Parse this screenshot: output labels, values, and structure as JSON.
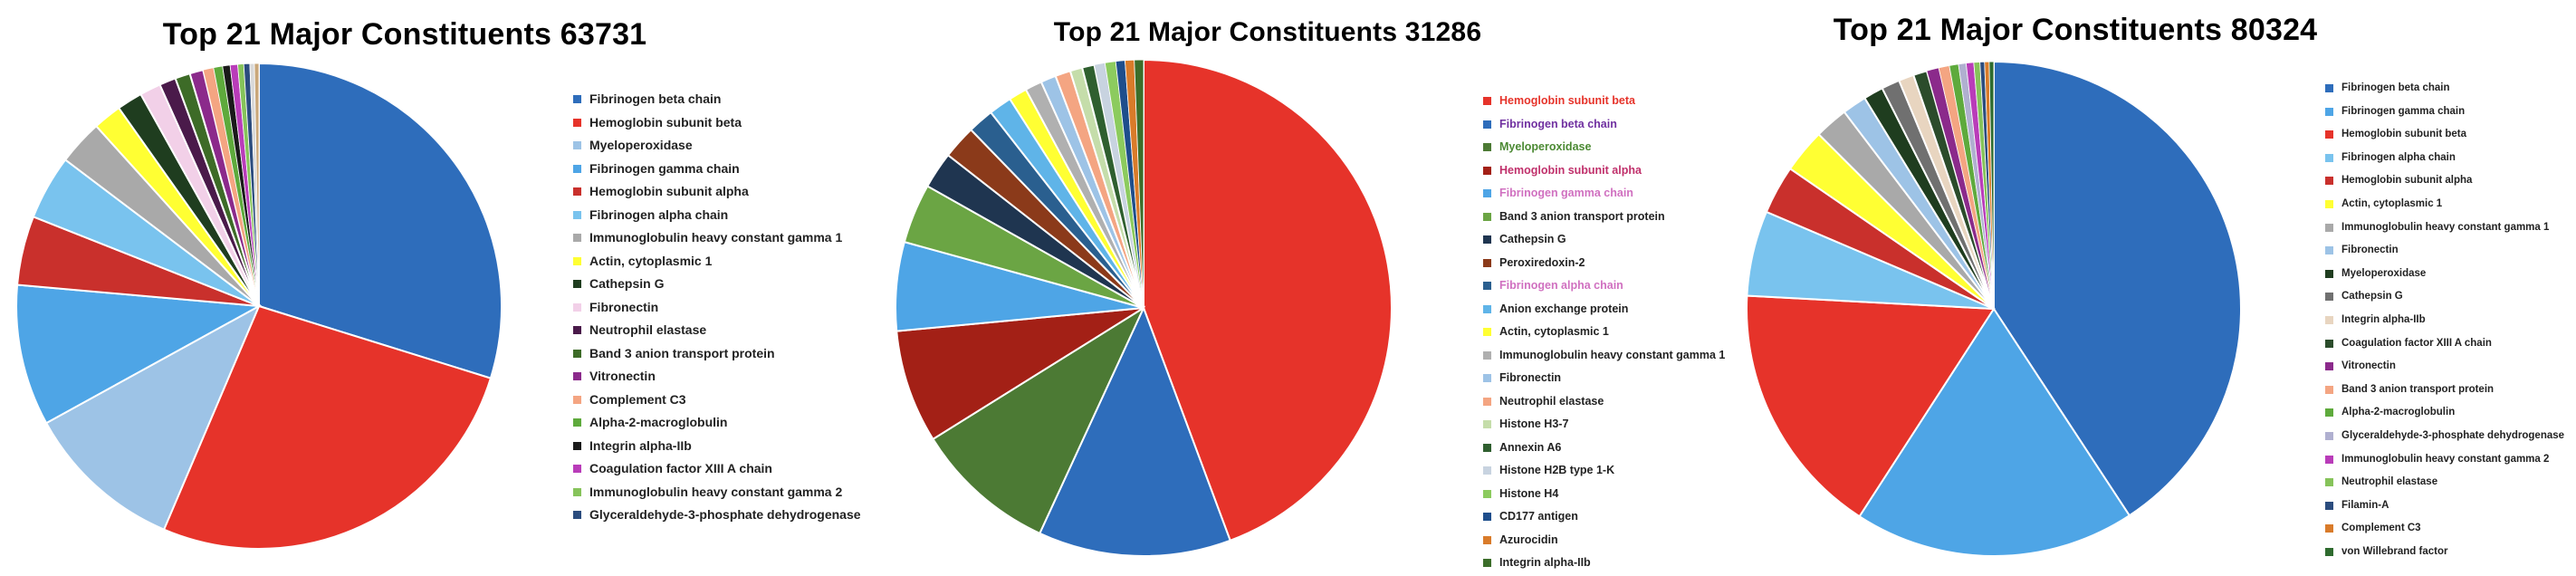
{
  "chart_data": [
    {
      "type": "pie",
      "title": "Top 21 Major Constituents 63731",
      "legend_position": "right",
      "legend_colored_text": false,
      "slices": [
        {
          "label": "Fibrinogen beta chain",
          "value": 29.8,
          "color": "#2E6DBB"
        },
        {
          "label": "Hemoglobin subunit beta",
          "value": 26.6,
          "color": "#E6332A"
        },
        {
          "label": "Myeloperoxidase",
          "value": 10.6,
          "color": "#9DC3E6"
        },
        {
          "label": "Fibrinogen gamma chain",
          "value": 9.4,
          "color": "#4EA5E6"
        },
        {
          "label": "Hemoglobin subunit alpha",
          "value": 4.6,
          "color": "#C9302C"
        },
        {
          "label": "Fibrinogen alpha chain",
          "value": 4.3,
          "color": "#79C3EE"
        },
        {
          "label": "Immunoglobulin heavy constant gamma 1",
          "value": 3.0,
          "color": "#A9A9A9"
        },
        {
          "label": "Actin, cytoplasmic 1",
          "value": 1.9,
          "color": "#FFFF33"
        },
        {
          "label": "Cathepsin G",
          "value": 1.7,
          "color": "#1F3D1F"
        },
        {
          "label": "Fibronectin",
          "value": 1.4,
          "color": "#F2D0E8"
        },
        {
          "label": "Neutrophil elastase",
          "value": 1.1,
          "color": "#4A1A4A"
        },
        {
          "label": "Band 3 anion transport protein",
          "value": 1.0,
          "color": "#3D6B27"
        },
        {
          "label": "Vitronectin",
          "value": 0.9,
          "color": "#8B2A8B"
        },
        {
          "label": "Complement C3",
          "value": 0.7,
          "color": "#F4A582"
        },
        {
          "label": "Alpha-2-macroglobulin",
          "value": 0.6,
          "color": "#5EAA3C"
        },
        {
          "label": "Integrin alpha-IIb",
          "value": 0.5,
          "color": "#1A1A1A"
        },
        {
          "label": "Coagulation factor XIII A chain",
          "value": 0.5,
          "color": "#B93CB9"
        },
        {
          "label": "Immunoglobulin heavy constant gamma 2",
          "value": 0.4,
          "color": "#86C35A"
        },
        {
          "label": "Glyceraldehyde-3-phosphate dehydrogenase",
          "value": 0.4,
          "color": "#2B4C7E"
        },
        {
          "label": "",
          "value": 0.3,
          "color": "#D9D9D9"
        },
        {
          "label": "",
          "value": 0.3,
          "color": "#C9A77A"
        }
      ]
    },
    {
      "type": "pie",
      "title": "Top 21 Major Constituents 31286",
      "legend_position": "right",
      "legend_colored_text": true,
      "slices": [
        {
          "label": "Hemoglobin subunit beta",
          "value": 44.5,
          "color": "#E6332A"
        },
        {
          "label": "Fibrinogen beta chain",
          "value": 12.6,
          "color": "#2E6DBB"
        },
        {
          "label": "Myeloperoxidase",
          "value": 9.3,
          "color": "#4C7A34"
        },
        {
          "label": "Hemoglobin subunit alpha",
          "value": 7.4,
          "color": "#A32016"
        },
        {
          "label": "Fibrinogen gamma chain",
          "value": 5.8,
          "color": "#4EA5E6"
        },
        {
          "label": "Band 3 anion transport protein",
          "value": 3.9,
          "color": "#6BA544"
        },
        {
          "label": "Cathepsin G",
          "value": 2.4,
          "color": "#1F3550"
        },
        {
          "label": "Peroxiredoxin-2",
          "value": 2.2,
          "color": "#8B3A1A"
        },
        {
          "label": "Fibrinogen alpha chain",
          "value": 1.7,
          "color": "#2A5F8F"
        },
        {
          "label": "Anion exchange protein",
          "value": 1.5,
          "color": "#5FB4E8"
        },
        {
          "label": "Actin, cytoplasmic 1",
          "value": 1.2,
          "color": "#FFFF33"
        },
        {
          "label": "Immunoglobulin heavy constant gamma 1",
          "value": 1.1,
          "color": "#B0B0B0"
        },
        {
          "label": "Fibronectin",
          "value": 1.0,
          "color": "#9DC3E6"
        },
        {
          "label": "Neutrophil elastase",
          "value": 1.0,
          "color": "#F4A582"
        },
        {
          "label": "Histone H3-7",
          "value": 0.8,
          "color": "#C5DDAA"
        },
        {
          "label": "Annexin A6",
          "value": 0.8,
          "color": "#2F5F2F"
        },
        {
          "label": "Histone H2B type 1-K",
          "value": 0.7,
          "color": "#C8D3E0"
        },
        {
          "label": "Histone H4",
          "value": 0.7,
          "color": "#8CCB5E"
        },
        {
          "label": "CD177 antigen",
          "value": 0.6,
          "color": "#1E4E8C"
        },
        {
          "label": "Azurocidin",
          "value": 0.6,
          "color": "#D97B2A"
        },
        {
          "label": "Integrin alpha-IIb",
          "value": 0.6,
          "color": "#3C6E2A"
        }
      ],
      "legend_text_colors": [
        "#E6332A",
        "#7030A0",
        "#4C8A34",
        "#C0306B",
        "#D070C0",
        "#222222",
        "#222222",
        "#222222",
        "#D070C0",
        "#222222",
        "#222222",
        "#222222",
        "#222222",
        "#222222",
        "#222222",
        "#222222",
        "#222222",
        "#222222",
        "#222222",
        "#222222",
        "#222222"
      ]
    },
    {
      "type": "pie",
      "title": "Top 21 Major Constituents 80324",
      "legend_position": "right",
      "legend_colored_text": false,
      "slices": [
        {
          "label": "Fibrinogen beta chain",
          "value": 41.0,
          "color": "#2E6DBB"
        },
        {
          "label": "Fibrinogen gamma chain",
          "value": 18.5,
          "color": "#4EA5E6"
        },
        {
          "label": "Hemoglobin subunit beta",
          "value": 16.8,
          "color": "#E6332A"
        },
        {
          "label": "Fibrinogen alpha chain",
          "value": 5.6,
          "color": "#79C3EE"
        },
        {
          "label": "Hemoglobin subunit alpha",
          "value": 3.2,
          "color": "#C9302C"
        },
        {
          "label": "Actin, cytoplasmic 1",
          "value": 2.9,
          "color": "#FFFF33"
        },
        {
          "label": "Immunoglobulin heavy constant gamma 1",
          "value": 2.2,
          "color": "#A9A9A9"
        },
        {
          "label": "Fibronectin",
          "value": 1.6,
          "color": "#9DC3E6"
        },
        {
          "label": "Myeloperoxidase",
          "value": 1.3,
          "color": "#1F3D1F"
        },
        {
          "label": "Cathepsin G",
          "value": 1.2,
          "color": "#707070"
        },
        {
          "label": "Integrin alpha-IIb",
          "value": 1.0,
          "color": "#E8D5C0"
        },
        {
          "label": "Coagulation factor XIII A chain",
          "value": 0.9,
          "color": "#2B4C2B"
        },
        {
          "label": "Vitronectin",
          "value": 0.8,
          "color": "#8B2A8B"
        },
        {
          "label": "Band 3 anion transport protein",
          "value": 0.7,
          "color": "#F4A582"
        },
        {
          "label": "Alpha-2-macroglobulin",
          "value": 0.6,
          "color": "#5EAA3C"
        },
        {
          "label": "Glyceraldehyde-3-phosphate dehydrogenase",
          "value": 0.5,
          "color": "#B0B0D0"
        },
        {
          "label": "Immunoglobulin heavy constant gamma 2",
          "value": 0.5,
          "color": "#B93CB9"
        },
        {
          "label": "Neutrophil elastase",
          "value": 0.4,
          "color": "#86C35A"
        },
        {
          "label": "Filamin-A",
          "value": 0.3,
          "color": "#2B4C7E"
        },
        {
          "label": "Complement C3",
          "value": 0.3,
          "color": "#D97B2A"
        },
        {
          "label": "von Willebrand factor",
          "value": 0.3,
          "color": "#2F6B2F"
        }
      ]
    }
  ]
}
